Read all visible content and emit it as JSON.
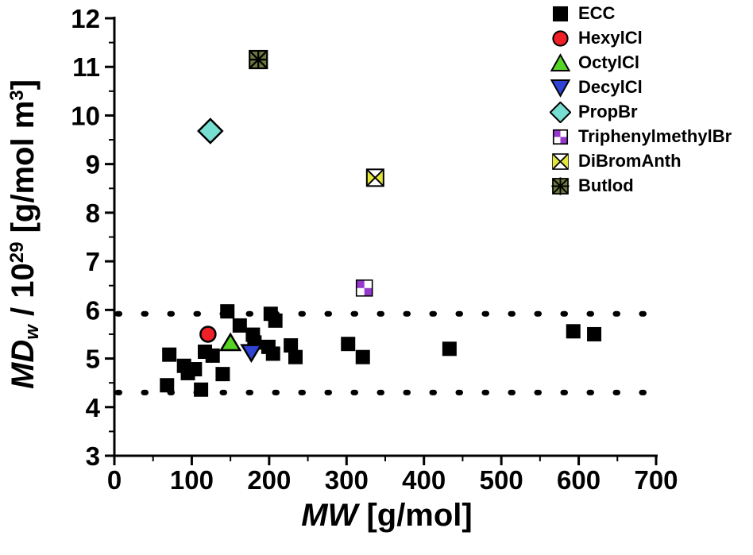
{
  "labels": {
    "y_var": "MD",
    "y_sub": "w",
    "y_mid": " / 10",
    "y_exp": "29",
    "y_unit": " [g/mol m",
    "y_unit_exp": "3",
    "y_close": "]",
    "x_var": "MW",
    "x_unit": " [g/mol]"
  },
  "chart_data": {
    "type": "scatter",
    "title": "",
    "xlabel": "MW [g/mol]",
    "ylabel": "MDw / 10^29 [g/mol m^3]",
    "xlim": [
      0,
      700
    ],
    "ylim": [
      3,
      12
    ],
    "x_ticks": [
      0,
      100,
      200,
      300,
      400,
      500,
      600,
      700
    ],
    "y_ticks": [
      3,
      4,
      5,
      6,
      7,
      8,
      9,
      10,
      11,
      12
    ],
    "x_minor_step": 50,
    "y_minor_step": 0.5,
    "grid": false,
    "legend_position": "top-right",
    "axis_color": "#000000",
    "reference_lines": [
      {
        "y": 5.92,
        "style": "dotted",
        "color": "#000000"
      },
      {
        "y": 4.3,
        "style": "dotted",
        "color": "#000000"
      }
    ],
    "series": [
      {
        "name": "ECC",
        "marker": "square",
        "color": "#000000",
        "points": [
          [
            68,
            4.45
          ],
          [
            71,
            5.08
          ],
          [
            90,
            4.85
          ],
          [
            95,
            4.7
          ],
          [
            104,
            4.78
          ],
          [
            112,
            4.36
          ],
          [
            117,
            5.14
          ],
          [
            127,
            5.06
          ],
          [
            140,
            4.68
          ],
          [
            146,
            5.97
          ],
          [
            162,
            5.68
          ],
          [
            179,
            5.49
          ],
          [
            181,
            5.33
          ],
          [
            199,
            5.24
          ],
          [
            202,
            5.92
          ],
          [
            205,
            5.1
          ],
          [
            208,
            5.78
          ],
          [
            228,
            5.27
          ],
          [
            234,
            5.03
          ],
          [
            302,
            5.3
          ],
          [
            321,
            5.03
          ],
          [
            433,
            5.2
          ],
          [
            593,
            5.56
          ],
          [
            620,
            5.5
          ]
        ]
      },
      {
        "name": "HexylCl",
        "marker": "circle",
        "color": "#ee2128",
        "points": [
          [
            121,
            5.5
          ]
        ]
      },
      {
        "name": "OctylCl",
        "marker": "triangle-up",
        "color": "#56d426",
        "points": [
          [
            150,
            5.32
          ]
        ]
      },
      {
        "name": "DecylCl",
        "marker": "triangle-down",
        "color": "#2f43d4",
        "points": [
          [
            177,
            5.13
          ]
        ]
      },
      {
        "name": "PropBr",
        "marker": "diamond",
        "color": "#76dfd2",
        "points": [
          [
            124,
            9.68
          ]
        ]
      },
      {
        "name": "TriphenylmethylBr",
        "marker": "checker-square",
        "color": "#9638cc",
        "points": [
          [
            323,
            6.45
          ]
        ]
      },
      {
        "name": "DiBromAnth",
        "marker": "x-square",
        "color": "#e5e63a",
        "points": [
          [
            337,
            8.72
          ]
        ]
      },
      {
        "name": "ButIod",
        "marker": "asterisk-square",
        "color": "#6d7a3e",
        "points": [
          [
            186,
            11.15
          ]
        ]
      }
    ]
  }
}
